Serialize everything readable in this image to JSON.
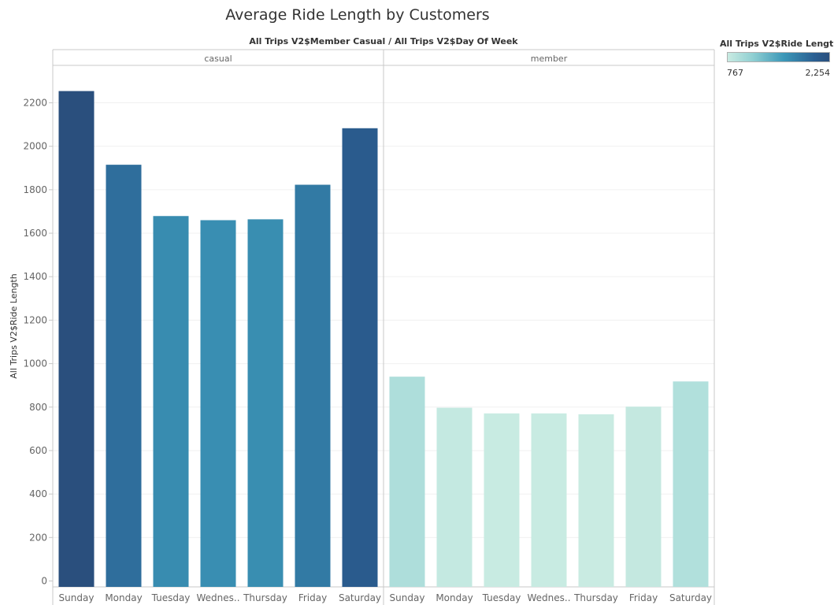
{
  "chart_data": {
    "type": "bar",
    "title": "Average Ride Length by Customers",
    "header_caption": "All Trips V2$Member Casual / All Trips V2$Day Of Week",
    "ylabel": "All Trips V2$Ride Length",
    "ylim": [
      0,
      2300
    ],
    "y_ticks": [
      0,
      200,
      400,
      600,
      800,
      1000,
      1200,
      1400,
      1600,
      1800,
      2000,
      2200
    ],
    "grid": true,
    "legend": {
      "title": "All Trips V2$Ride Length",
      "min_label": "767",
      "max_label": "2,254",
      "min_value": 767,
      "max_value": 2254,
      "color_low": "#c9ebe2",
      "color_high": "#2a4f7d",
      "placement": "top-right"
    },
    "panels": [
      {
        "name": "casual",
        "categories": [
          "Sunday",
          "Monday",
          "Tuesday",
          "Wednes..",
          "Thursday",
          "Friday",
          "Saturday"
        ],
        "values": [
          2254,
          1915,
          1679,
          1660,
          1664,
          1823,
          2083
        ]
      },
      {
        "name": "member",
        "categories": [
          "Sunday",
          "Monday",
          "Tuesday",
          "Wednes..",
          "Thursday",
          "Friday",
          "Saturday"
        ],
        "values": [
          940,
          797,
          771,
          771,
          767,
          802,
          918
        ]
      }
    ]
  }
}
